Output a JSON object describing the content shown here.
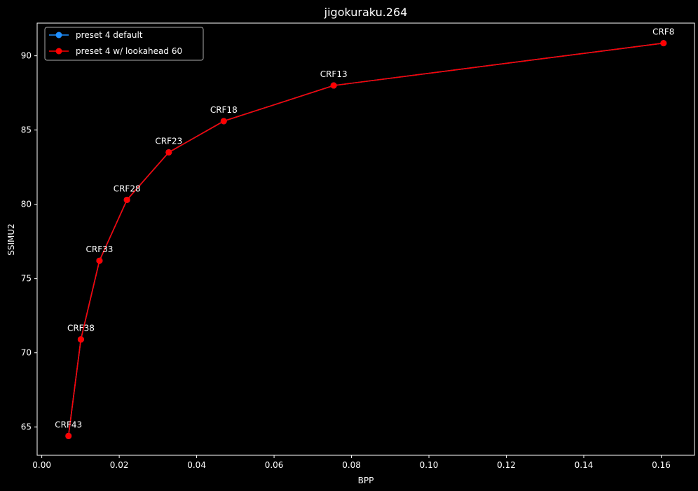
{
  "chart_data": {
    "type": "line",
    "title": "jigokuraku.264",
    "xlabel": "BPP",
    "ylabel": "SSIMU2",
    "xlim": [
      -0.0012,
      0.1686
    ],
    "ylim": [
      63.1,
      92.2
    ],
    "xticks": [
      "0.00",
      "0.02",
      "0.04",
      "0.06",
      "0.08",
      "0.10",
      "0.12",
      "0.14",
      "0.16"
    ],
    "xtick_values": [
      0,
      0.02,
      0.04,
      0.06,
      0.08,
      0.1,
      0.12,
      0.14,
      0.16
    ],
    "yticks": [
      "65",
      "70",
      "75",
      "80",
      "85",
      "90"
    ],
    "ytick_values": [
      65,
      70,
      75,
      80,
      85,
      90
    ],
    "grid": false,
    "legend_position": "top-left",
    "series": [
      {
        "name": "preset 4 default",
        "color": "#1f8fff",
        "x": [
          0.0069,
          0.0101,
          0.0149,
          0.022,
          0.0328,
          0.047,
          0.0754,
          0.1606
        ],
        "y": [
          64.4,
          70.9,
          76.2,
          80.3,
          83.5,
          85.6,
          88.0,
          90.85
        ]
      },
      {
        "name": "preset 4 w/ lookahead 60",
        "color": "#ff0000",
        "x": [
          0.0069,
          0.0101,
          0.0149,
          0.022,
          0.0328,
          0.047,
          0.0754,
          0.1606
        ],
        "y": [
          64.4,
          70.9,
          76.2,
          80.3,
          83.5,
          85.6,
          88.0,
          90.85
        ]
      }
    ],
    "annotations": [
      {
        "text": "CRF43",
        "x": 0.0069,
        "y": 64.4
      },
      {
        "text": "CRF38",
        "x": 0.0101,
        "y": 70.9
      },
      {
        "text": "CRF33",
        "x": 0.0149,
        "y": 76.2
      },
      {
        "text": "CRF28",
        "x": 0.022,
        "y": 80.3
      },
      {
        "text": "CRF23",
        "x": 0.0328,
        "y": 83.5
      },
      {
        "text": "CRF18",
        "x": 0.047,
        "y": 85.6
      },
      {
        "text": "CRF13",
        "x": 0.0754,
        "y": 88.0
      },
      {
        "text": "CRF8",
        "x": 0.1606,
        "y": 90.85
      }
    ]
  }
}
